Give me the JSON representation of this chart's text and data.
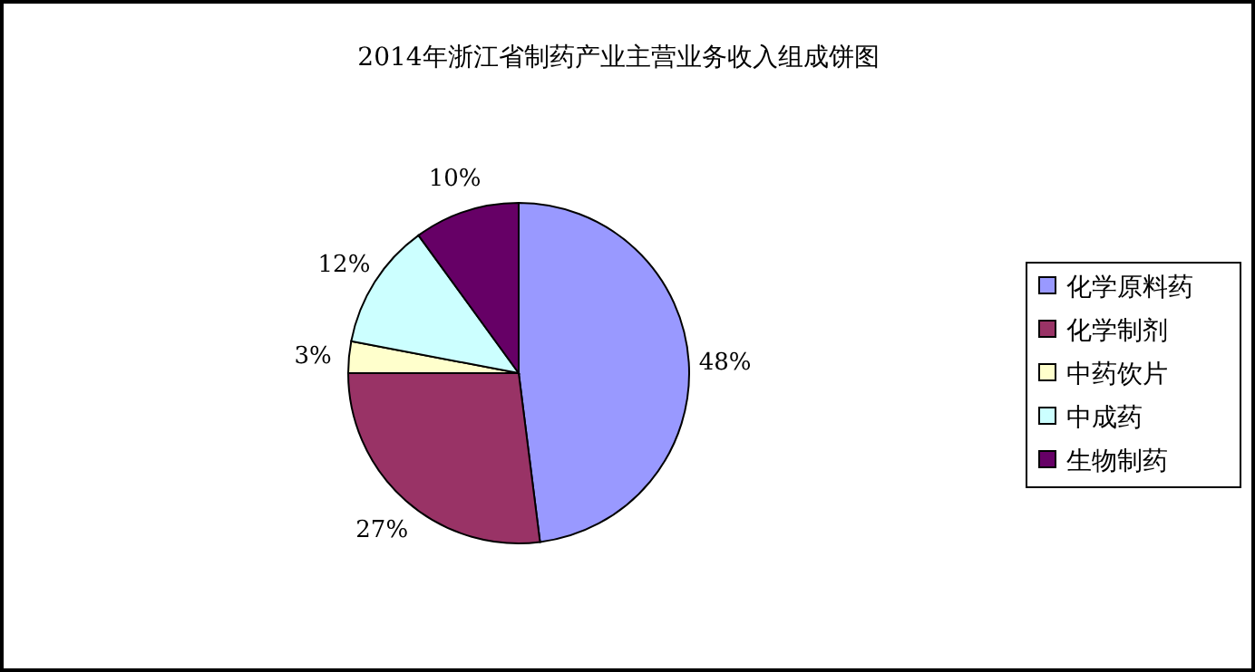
{
  "chart_data": {
    "type": "pie",
    "title": "2014年浙江省制药产业主营业务收入组成饼图",
    "categories": [
      "化学原料药",
      "化学制剂",
      "中药饮片",
      "中成药",
      "生物制药"
    ],
    "values": [
      48,
      27,
      3,
      12,
      10
    ],
    "colors": [
      "#9999ff",
      "#993366",
      "#ffffcc",
      "#ccffff",
      "#660066"
    ],
    "value_labels": [
      "48%",
      "27%",
      "3%",
      "12%",
      "10%"
    ],
    "legend": "right"
  }
}
